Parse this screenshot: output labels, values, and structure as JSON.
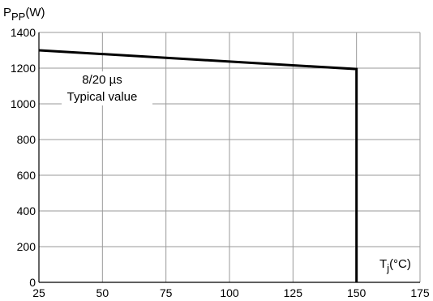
{
  "chart_data": {
    "type": "line",
    "ylabel": {
      "main": "P",
      "sub": "PP",
      "unit": "(W)"
    },
    "xlabel": {
      "main": "T",
      "sub": "j",
      "unit": "(°C)"
    },
    "xlim": [
      25,
      175
    ],
    "ylim": [
      0,
      1400
    ],
    "x_ticks": [
      25,
      50,
      75,
      100,
      125,
      150,
      175
    ],
    "y_ticks": [
      0,
      200,
      400,
      600,
      800,
      1000,
      1200,
      1400
    ],
    "grid": true,
    "series": [
      {
        "x": [
          25,
          150,
          150
        ],
        "y": [
          1300,
          1195,
          0
        ]
      }
    ],
    "annotations": [
      "8/20 µs",
      "Typical value"
    ]
  },
  "colors": {
    "line": "#000000",
    "grid": "#9a9a9a",
    "axis": "#000000"
  }
}
